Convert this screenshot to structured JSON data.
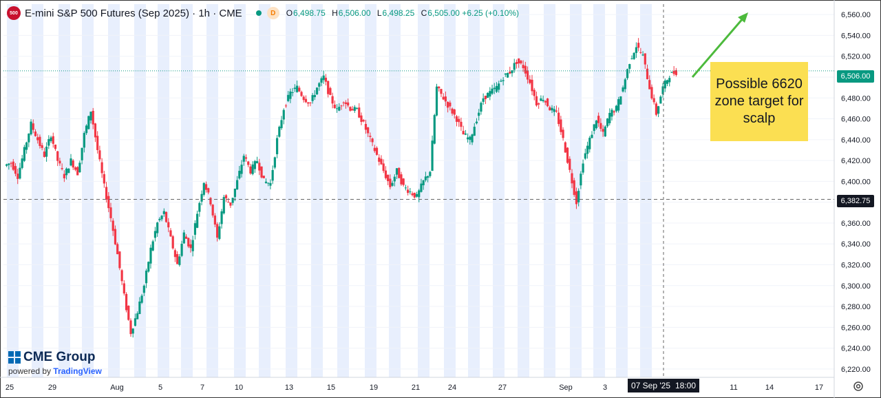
{
  "header": {
    "symbol_badge": "500",
    "title": "E-mini S&P 500 Futures (Sep 2025) · 1h · CME",
    "delay_badge": "D",
    "ohlc": [
      {
        "k": "O",
        "v": "6,498.75"
      },
      {
        "k": "H",
        "v": "6,506.00"
      },
      {
        "k": "L",
        "v": "6,498.25"
      },
      {
        "k": "C",
        "v": "6,505.00 +6.25 (+0.10%)"
      }
    ]
  },
  "annotation": {
    "note_text": "Possible 6620 zone target for scalp",
    "arrow_color": "#4cba3c"
  },
  "price_tags": {
    "last": "6,506.00",
    "crosshair": "6,382.75"
  },
  "time_tags": {
    "date": "07 Sep '25",
    "time": "18:00"
  },
  "logo": {
    "brand": "CME Group",
    "powered_prefix": "powered by",
    "powered_brand": "TradingView"
  },
  "colors": {
    "up": "#089981",
    "down": "#f23645",
    "session_band": "#e8effd",
    "last_price": "#089981",
    "note_bg": "#fbdf52"
  },
  "icons": {
    "settings": "gear-icon"
  },
  "chart_data": {
    "type": "candlestick",
    "title": "E-mini S&P 500 Futures (Sep 2025) · 1h · CME",
    "ylim": [
      6212,
      6570
    ],
    "y_ticks": [
      6220,
      6240,
      6260,
      6280,
      6300,
      6320,
      6340,
      6360,
      6380,
      6400,
      6420,
      6440,
      6460,
      6480,
      6500,
      6520,
      6540,
      6560
    ],
    "y_tick_labels": [
      "6,220.00",
      "6,240.00",
      "6,260.00",
      "6,280.00",
      "6,300.00",
      "6,320.00",
      "6,340.00",
      "6,360.00",
      "6,380.00",
      "6,400.00",
      "6,420.00",
      "6,440.00",
      "6,460.00",
      "6,480.00",
      "6,500.00",
      "6,520.00",
      "6,540.00",
      "6,560.00"
    ],
    "x_labels": [
      "25",
      "29",
      "Aug",
      "5",
      "7",
      "10",
      "13",
      "15",
      "19",
      "21",
      "24",
      "27",
      "Sep",
      "3",
      "11",
      "14",
      "17"
    ],
    "grid": true,
    "price_path": [
      [
        0,
        6415
      ],
      [
        1,
        6418
      ],
      [
        2,
        6405
      ],
      [
        3,
        6430
      ],
      [
        4,
        6455
      ],
      [
        5,
        6440
      ],
      [
        6,
        6425
      ],
      [
        7,
        6445
      ],
      [
        8,
        6420
      ],
      [
        9,
        6405
      ],
      [
        10,
        6420
      ],
      [
        11,
        6408
      ],
      [
        12,
        6445
      ],
      [
        13,
        6468
      ],
      [
        14,
        6430
      ],
      [
        15,
        6395
      ],
      [
        16,
        6365
      ],
      [
        17,
        6330
      ],
      [
        18,
        6290
      ],
      [
        19,
        6255
      ],
      [
        20,
        6275
      ],
      [
        21,
        6300
      ],
      [
        22,
        6335
      ],
      [
        23,
        6360
      ],
      [
        24,
        6370
      ],
      [
        25,
        6345
      ],
      [
        26,
        6320
      ],
      [
        27,
        6350
      ],
      [
        28,
        6335
      ],
      [
        29,
        6370
      ],
      [
        30,
        6400
      ],
      [
        31,
        6380
      ],
      [
        32,
        6345
      ],
      [
        33,
        6385
      ],
      [
        34,
        6378
      ],
      [
        35,
        6400
      ],
      [
        36,
        6425
      ],
      [
        37,
        6410
      ],
      [
        38,
        6420
      ],
      [
        39,
        6400
      ],
      [
        40,
        6398
      ],
      [
        41,
        6440
      ],
      [
        42,
        6470
      ],
      [
        43,
        6485
      ],
      [
        44,
        6490
      ],
      [
        45,
        6480
      ],
      [
        46,
        6475
      ],
      [
        47,
        6490
      ],
      [
        48,
        6500
      ],
      [
        49,
        6480
      ],
      [
        50,
        6468
      ],
      [
        51,
        6478
      ],
      [
        52,
        6470
      ],
      [
        53,
        6468
      ],
      [
        54,
        6455
      ],
      [
        55,
        6440
      ],
      [
        56,
        6425
      ],
      [
        57,
        6410
      ],
      [
        58,
        6395
      ],
      [
        59,
        6410
      ],
      [
        60,
        6395
      ],
      [
        61,
        6390
      ],
      [
        62,
        6385
      ],
      [
        63,
        6400
      ],
      [
        64,
        6410
      ],
      [
        65,
        6490
      ],
      [
        66,
        6480
      ],
      [
        67,
        6470
      ],
      [
        68,
        6460
      ],
      [
        69,
        6445
      ],
      [
        70,
        6440
      ],
      [
        71,
        6460
      ],
      [
        72,
        6480
      ],
      [
        73,
        6485
      ],
      [
        74,
        6490
      ],
      [
        75,
        6500
      ],
      [
        76,
        6505
      ],
      [
        77,
        6515
      ],
      [
        78,
        6510
      ],
      [
        79,
        6495
      ],
      [
        80,
        6475
      ],
      [
        81,
        6480
      ],
      [
        82,
        6470
      ],
      [
        83,
        6465
      ],
      [
        84,
        6440
      ],
      [
        85,
        6410
      ],
      [
        86,
        6380
      ],
      [
        87,
        6420
      ],
      [
        88,
        6440
      ],
      [
        89,
        6460
      ],
      [
        90,
        6445
      ],
      [
        91,
        6465
      ],
      [
        92,
        6470
      ],
      [
        93,
        6490
      ],
      [
        94,
        6515
      ],
      [
        95,
        6530
      ],
      [
        96,
        6520
      ],
      [
        97,
        6490
      ],
      [
        98,
        6465
      ],
      [
        99,
        6490
      ],
      [
        100,
        6502
      ],
      [
        101,
        6505
      ]
    ]
  }
}
